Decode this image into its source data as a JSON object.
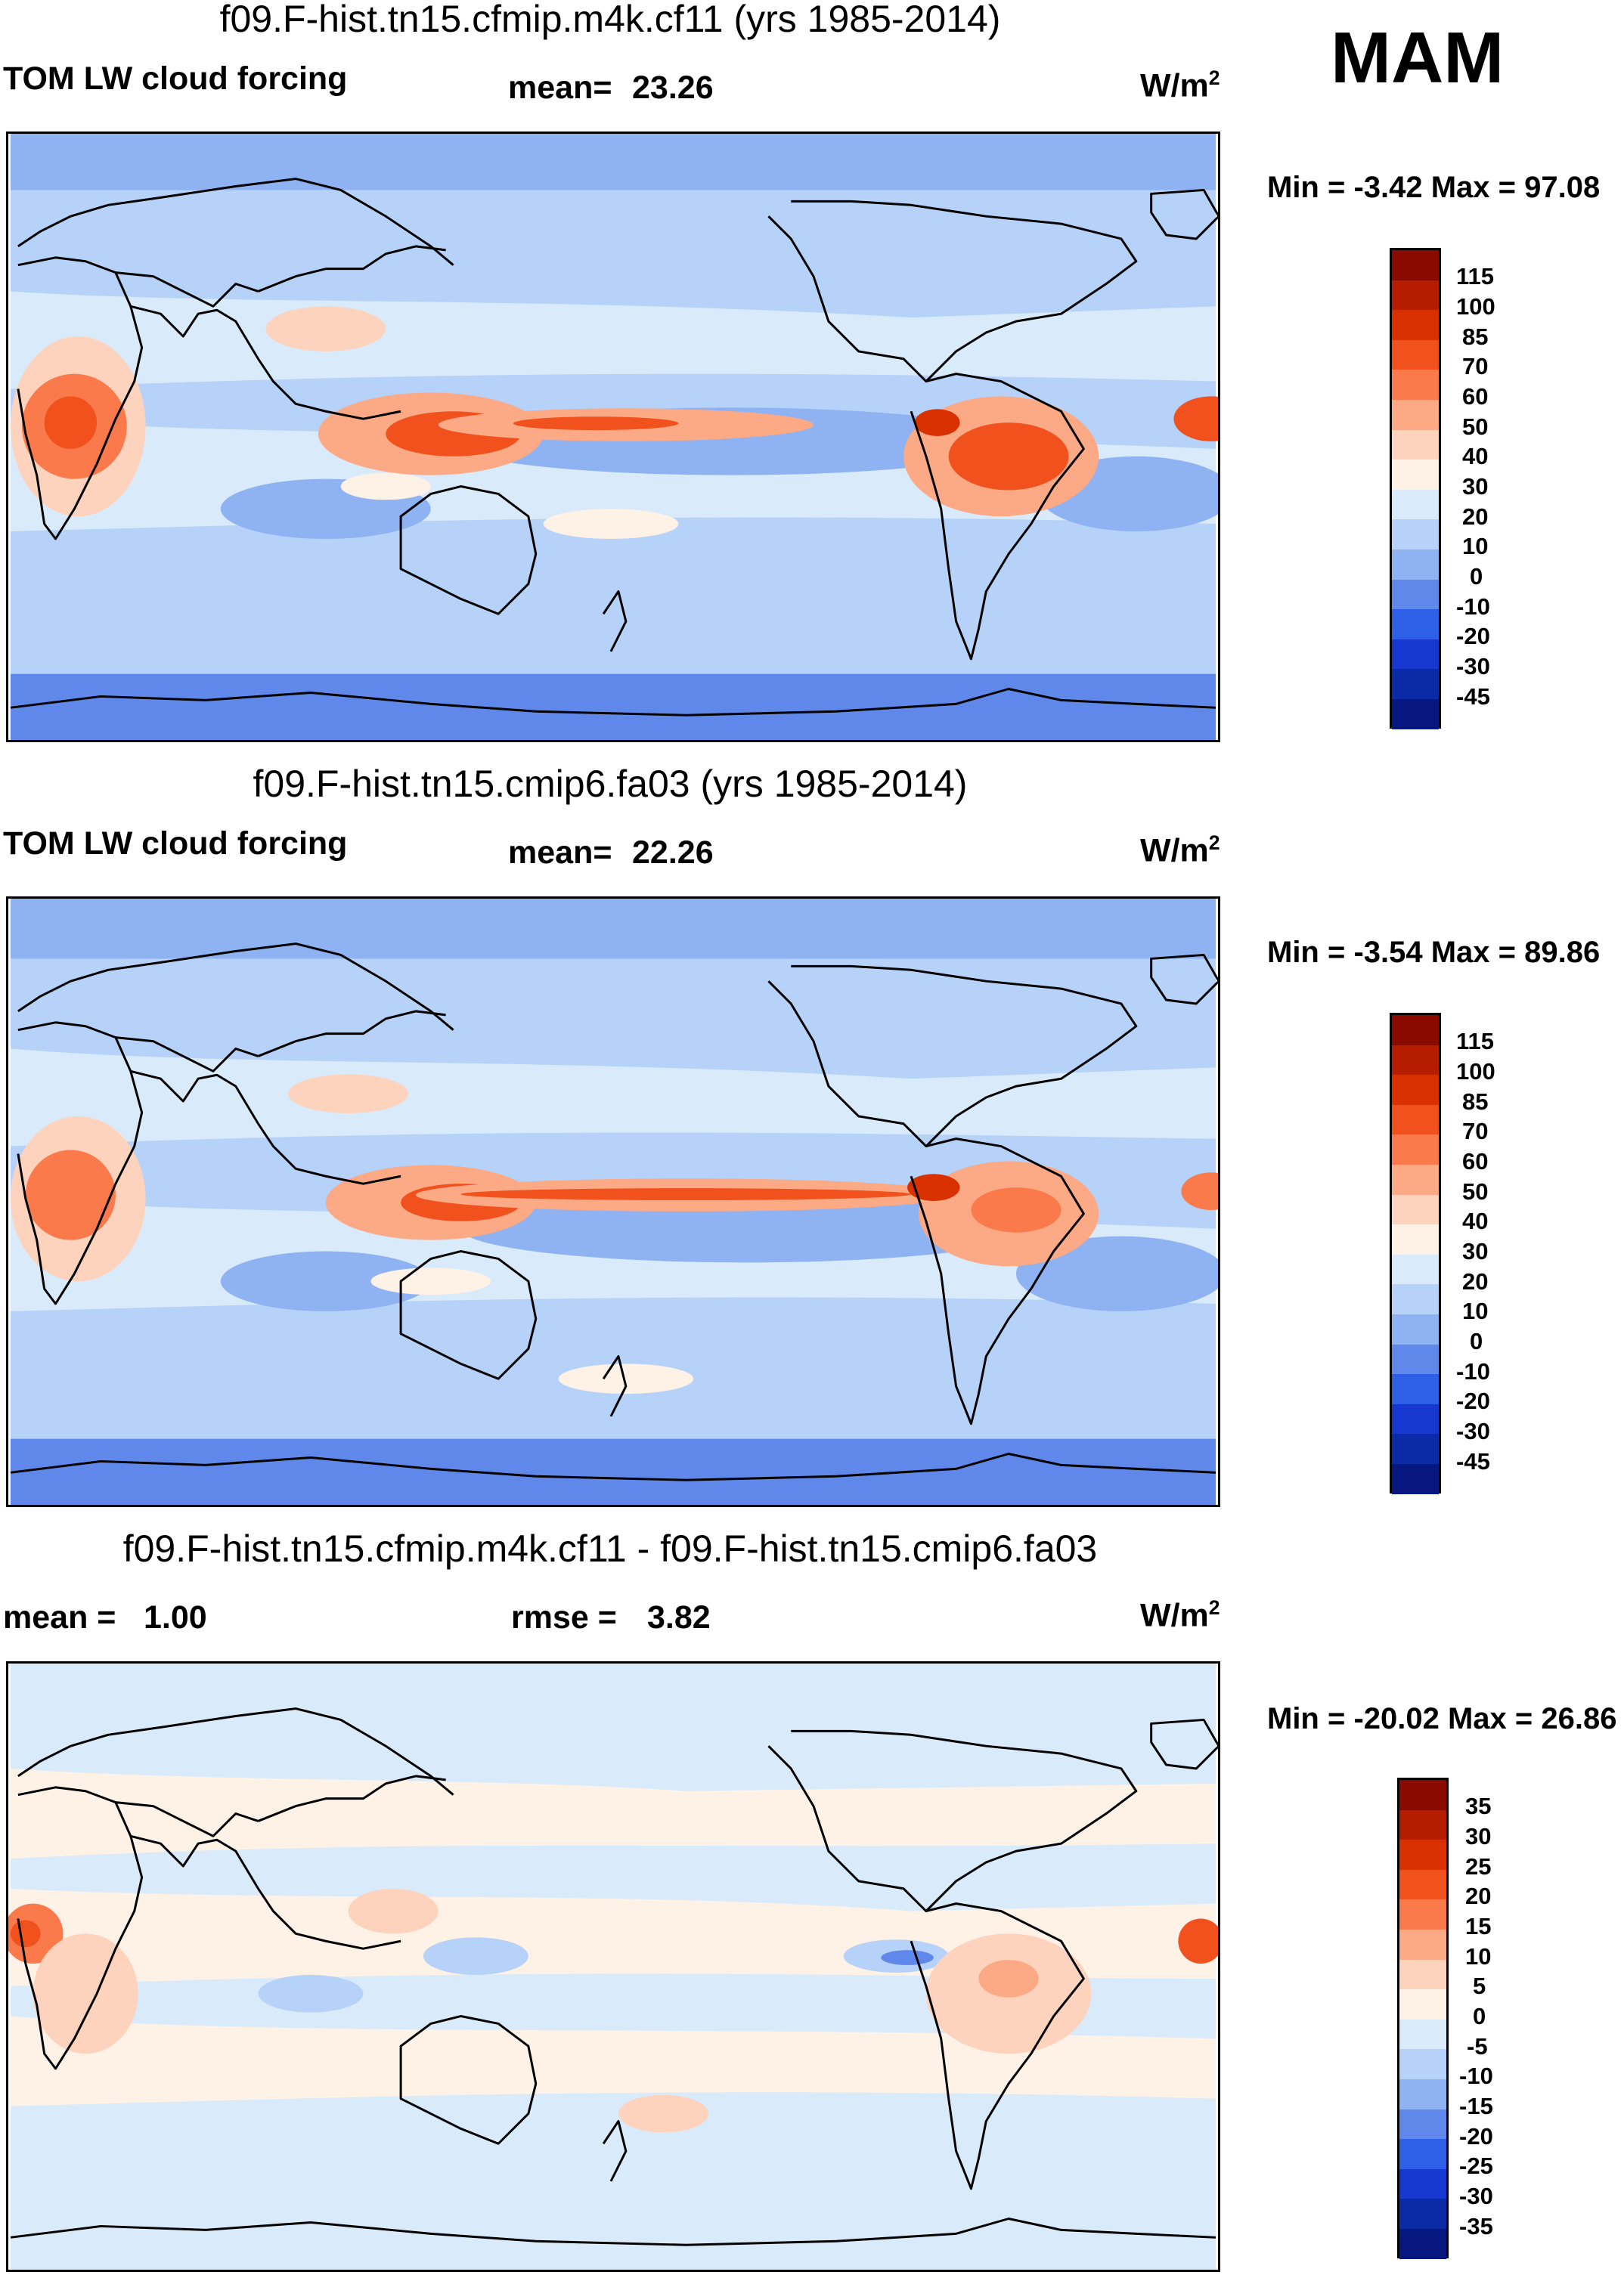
{
  "season": "MAM",
  "units_base": "W/m",
  "units_exp": "2",
  "panels": [
    {
      "title": "f09.F-hist.tn15.cfmip.m4k.cf11 (yrs 1985-2014)",
      "left_label": "TOM LW cloud forcing",
      "stat_label": "mean=",
      "stat_value": "23.26",
      "minmax_text": "Min =  -3.42 Max =  97.08"
    },
    {
      "title": "f09.F-hist.tn15.cmip6.fa03 (yrs 1985-2014)",
      "left_label": "TOM LW cloud forcing",
      "stat_label": "mean=",
      "stat_value": "22.26",
      "minmax_text": "Min =  -3.54 Max =  89.86"
    },
    {
      "title": "f09.F-hist.tn15.cfmip.m4k.cf11 - f09.F-hist.tn15.cmip6.fa03",
      "left_label": "mean =",
      "left_value": "1.00",
      "stat_label": "rmse =",
      "stat_value": "3.82",
      "minmax_text": "Min = -20.02 Max =  26.86"
    }
  ],
  "colorbars": {
    "field": {
      "levels": [
        "115",
        "100",
        "85",
        "70",
        "60",
        "50",
        "40",
        "30",
        "20",
        "10",
        "0",
        "-10",
        "-20",
        "-30",
        "-45"
      ],
      "colors": [
        "#8b0a00",
        "#b51d00",
        "#d93000",
        "#f0511d",
        "#fa7a4c",
        "#fca985",
        "#fdd3bd",
        "#fef1e6",
        "#d9ebfb",
        "#b6d2f8",
        "#8fb2f2",
        "#6088ea",
        "#2d5fe7",
        "#1637d0",
        "#0b2aa6",
        "#061780"
      ]
    },
    "diff": {
      "levels": [
        "35",
        "30",
        "25",
        "20",
        "15",
        "10",
        "5",
        "0",
        "-5",
        "-10",
        "-15",
        "-20",
        "-25",
        "-30",
        "-35"
      ],
      "colors": [
        "#8b0a00",
        "#b51d00",
        "#d93000",
        "#f0511d",
        "#fa7a4c",
        "#fca985",
        "#fdd3bd",
        "#fef1e6",
        "#d9ebfb",
        "#b6d2f8",
        "#8fb2f2",
        "#6088ea",
        "#2d5fe7",
        "#1637d0",
        "#0b2aa6",
        "#061780"
      ]
    }
  }
}
